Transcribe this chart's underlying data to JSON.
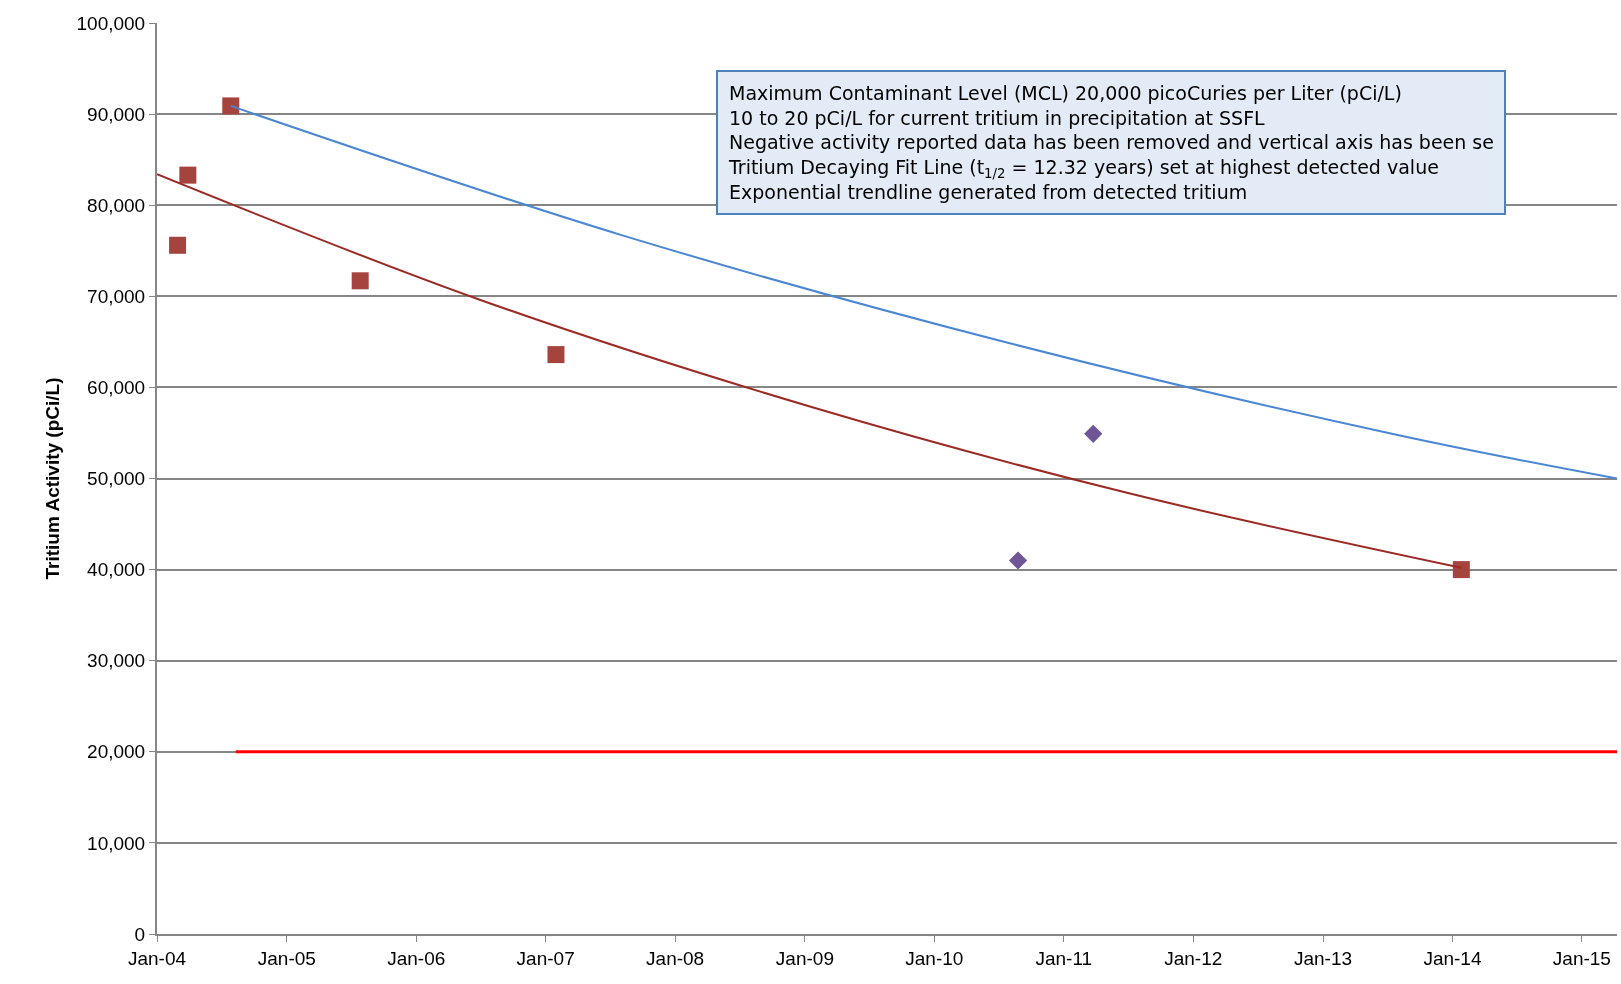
{
  "chart_data": {
    "type": "scatter",
    "ylabel": "Tritium Activity (pCi/L)",
    "annotations": [
      "Maximum Contaminant Level (MCL) 20,000 picoCuries per Liter (pCi/L)",
      "10 to 20 pCi/L for current tritium in precipitation at SSFL",
      "Negative activity reported data has been removed and vertical axis has been se",
      "Tritium Decaying Fit Line (t$_{1/2}$ = 12.32 years) set at highest detected value",
      "Exponential trendline generated from detected tritium"
    ],
    "series": [
      {
        "marker": "square",
        "color": "#a5443f",
        "x": [
          "2004-02-28",
          "2004-03-28",
          "2004-07-27",
          "2005-07-27",
          "2007-01-30",
          "2014-01-26"
        ],
        "values": [
          75600,
          83300,
          90900,
          71700,
          63600,
          40000
        ]
      },
      {
        "type": "scatter",
        "marker": "diamond",
        "color": "#6f5596",
        "x": [
          "2010-08-25",
          "2011-03-25"
        ],
        "values": [
          41000,
          54900
        ]
      },
      {
        "type": "line",
        "marker": "none",
        "color": "#ff0000",
        "x": [
          "2004-08-10",
          "2015-04-10"
        ],
        "values": [
          20000,
          20000
        ]
      },
      {
        "type": "line",
        "marker": "none",
        "color": "#4a86d4",
        "x": [
          "2004-07-27",
          "2007-07-27",
          "2010-07-27",
          "2013-07-27",
          "2015-04-10"
        ],
        "values": [
          90900,
          76800,
          64900,
          54800,
          50000
        ]
      },
      {
        "type": "line",
        "marker": "none",
        "color": "#9c2a24",
        "x": [
          "2004-01-01",
          "2006-07-01",
          "2009-01-15",
          "2011-07-01",
          "2014-01-26"
        ],
        "values": [
          83400,
          69600,
          57900,
          48400,
          40200
        ]
      }
    ],
    "xlim": [
      "2004-01-01",
      "2015-04-10"
    ],
    "xticks": [
      {
        "value": "2004-01-01",
        "label": "Jan-04"
      },
      {
        "value": "2005-01-01",
        "label": "Jan-05"
      },
      {
        "value": "2006-01-01",
        "label": "Jan-06"
      },
      {
        "value": "2007-01-01",
        "label": "Jan-07"
      },
      {
        "value": "2008-01-01",
        "label": "Jan-08"
      },
      {
        "value": "2009-01-01",
        "label": "Jan-09"
      },
      {
        "value": "2010-01-01",
        "label": "Jan-10"
      },
      {
        "value": "2011-01-01",
        "label": "Jan-11"
      },
      {
        "value": "2012-01-01",
        "label": "Jan-12"
      },
      {
        "value": "2013-01-01",
        "label": "Jan-13"
      },
      {
        "value": "2014-01-01",
        "label": "Jan-14"
      },
      {
        "value": "2015-01-01",
        "label": "Jan-15"
      }
    ],
    "ylim": [
      0,
      100000
    ],
    "yticks": [
      {
        "value": 0,
        "label": "0"
      },
      {
        "value": 10000,
        "label": "10,000"
      },
      {
        "value": 20000,
        "label": "20,000"
      },
      {
        "value": 30000,
        "label": "30,000"
      },
      {
        "value": 40000,
        "label": "40,000"
      },
      {
        "value": 50000,
        "label": "50,000"
      },
      {
        "value": 60000,
        "label": "60,000"
      },
      {
        "value": 70000,
        "label": "70,000"
      },
      {
        "value": 80000,
        "label": "80,000"
      },
      {
        "value": 90000,
        "label": "90,000"
      },
      {
        "value": 100000,
        "label": "100,000"
      }
    ],
    "grid": "y"
  }
}
